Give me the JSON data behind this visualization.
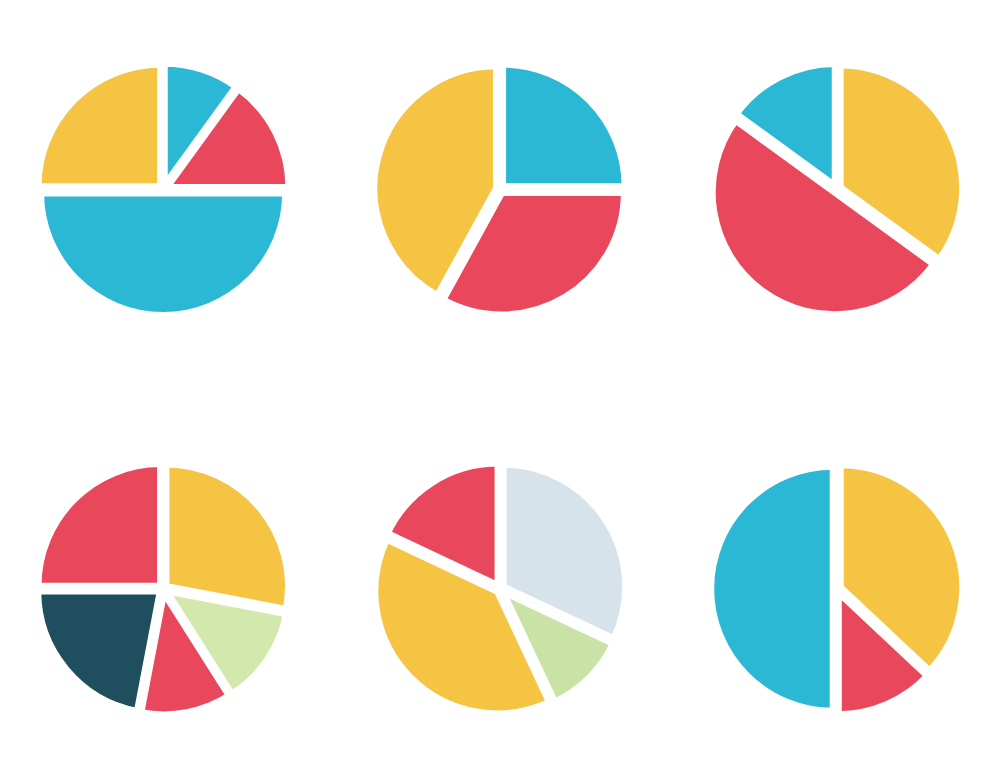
{
  "chart_data": [
    {
      "type": "pie",
      "categories": [
        null,
        null,
        null,
        null
      ],
      "values": [
        10,
        15,
        50,
        25
      ],
      "colors": [
        "#2bb8d4",
        "#e9485c",
        "#2bb8d4",
        "#f5c443"
      ]
    },
    {
      "type": "pie",
      "categories": [
        null,
        null,
        null
      ],
      "values": [
        25,
        33,
        42
      ],
      "colors": [
        "#2bb8d4",
        "#e9485c",
        "#f5c443"
      ]
    },
    {
      "type": "pie",
      "categories": [
        null,
        null,
        null
      ],
      "values": [
        35,
        50,
        15
      ],
      "colors": [
        "#f5c443",
        "#e9485c",
        "#2bb8d4"
      ]
    },
    {
      "type": "pie",
      "categories": [
        null,
        null,
        null,
        null,
        null
      ],
      "values": [
        28,
        13,
        12,
        22,
        25
      ],
      "colors": [
        "#f5c443",
        "#d3e8ad",
        "#e9485c",
        "#1f4f5f",
        "#e9485c"
      ]
    },
    {
      "type": "pie",
      "categories": [
        null,
        null,
        null,
        null
      ],
      "values": [
        32,
        11,
        39,
        18
      ],
      "colors": [
        "#d6e3ea",
        "#c9e3a6",
        "#f5c443",
        "#e9485c"
      ]
    },
    {
      "type": "pie",
      "categories": [
        null,
        null,
        null
      ],
      "values": [
        37,
        13,
        50
      ],
      "colors": [
        "#f5c443",
        "#e9485c",
        "#2bb8d4"
      ]
    }
  ]
}
